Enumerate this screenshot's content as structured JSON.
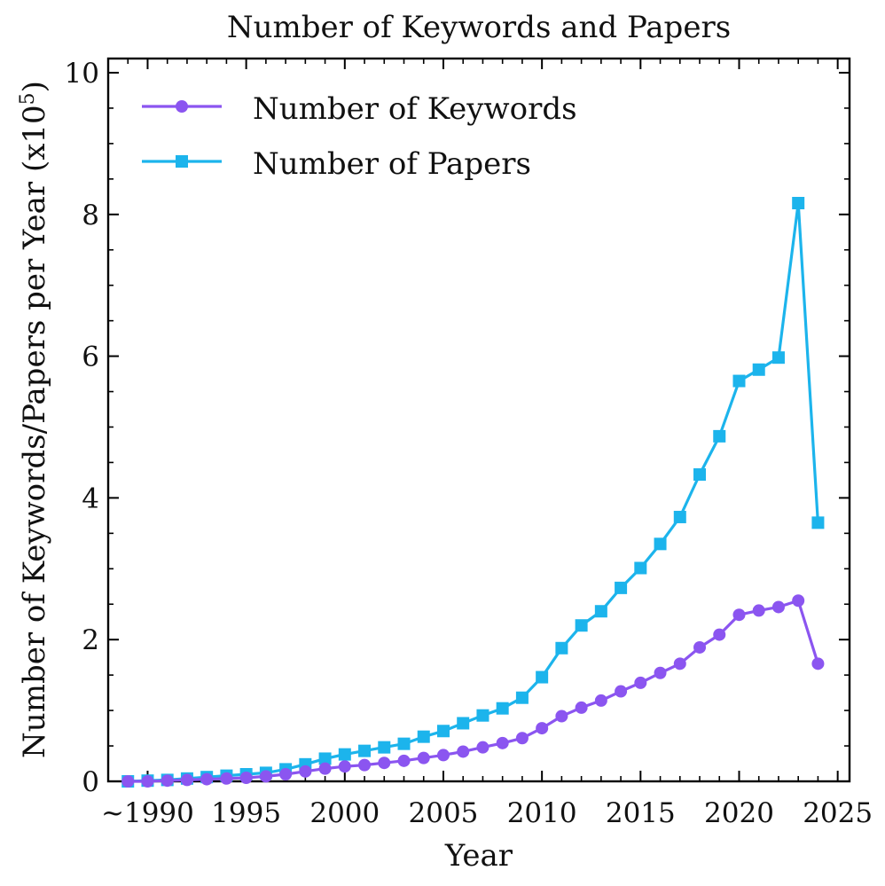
{
  "chart_data": {
    "type": "line",
    "title": "Number of Keywords and Papers",
    "xlabel": "Year",
    "ylabel_main": "Number of Keywords/Papers per Year (x10",
    "ylabel_exp": "5",
    "ylabel_close": ")",
    "xlim": [
      1988,
      2025.6
    ],
    "ylim": [
      0,
      10.2
    ],
    "x_ticks": [
      {
        "value": 1990,
        "label": "~1990"
      },
      {
        "value": 1995,
        "label": "1995"
      },
      {
        "value": 2000,
        "label": "2000"
      },
      {
        "value": 2005,
        "label": "2005"
      },
      {
        "value": 2010,
        "label": "2010"
      },
      {
        "value": 2015,
        "label": "2015"
      },
      {
        "value": 2020,
        "label": "2020"
      },
      {
        "value": 2025,
        "label": "2025"
      }
    ],
    "y_ticks": [
      {
        "value": 0,
        "label": "0"
      },
      {
        "value": 2,
        "label": "2"
      },
      {
        "value": 4,
        "label": "4"
      },
      {
        "value": 6,
        "label": "6"
      },
      {
        "value": 8,
        "label": "8"
      },
      {
        "value": 10,
        "label": "10"
      }
    ],
    "x": [
      1989,
      1990,
      1991,
      1992,
      1993,
      1994,
      1995,
      1996,
      1997,
      1998,
      1999,
      2000,
      2001,
      2002,
      2003,
      2004,
      2005,
      2006,
      2007,
      2008,
      2009,
      2010,
      2011,
      2012,
      2013,
      2014,
      2015,
      2016,
      2017,
      2018,
      2019,
      2020,
      2021,
      2022,
      2023,
      2024
    ],
    "series": [
      {
        "name": "Number of Papers",
        "color": "#1cb4ec",
        "marker": "square",
        "values": [
          0.0,
          0.01,
          0.02,
          0.04,
          0.06,
          0.08,
          0.1,
          0.12,
          0.17,
          0.24,
          0.32,
          0.38,
          0.43,
          0.48,
          0.53,
          0.63,
          0.71,
          0.82,
          0.93,
          1.03,
          1.18,
          1.47,
          1.88,
          2.2,
          2.4,
          2.73,
          3.01,
          3.35,
          3.73,
          4.33,
          4.87,
          5.65,
          5.81,
          5.98,
          8.16,
          3.65
        ]
      },
      {
        "name": "Number of Keywords",
        "color": "#8b55f0",
        "marker": "circle",
        "values": [
          0.0,
          0.0,
          0.01,
          0.02,
          0.03,
          0.04,
          0.05,
          0.07,
          0.1,
          0.14,
          0.18,
          0.21,
          0.23,
          0.26,
          0.29,
          0.33,
          0.37,
          0.42,
          0.48,
          0.54,
          0.61,
          0.75,
          0.92,
          1.04,
          1.14,
          1.27,
          1.39,
          1.53,
          1.66,
          1.89,
          2.07,
          2.35,
          2.41,
          2.46,
          2.55,
          1.66
        ]
      }
    ],
    "legend": {
      "position": "top-left",
      "entries": [
        {
          "label": "Number of Keywords",
          "color": "#8b55f0",
          "marker": "circle"
        },
        {
          "label": "Number of Papers",
          "color": "#1cb4ec",
          "marker": "square"
        }
      ]
    }
  }
}
